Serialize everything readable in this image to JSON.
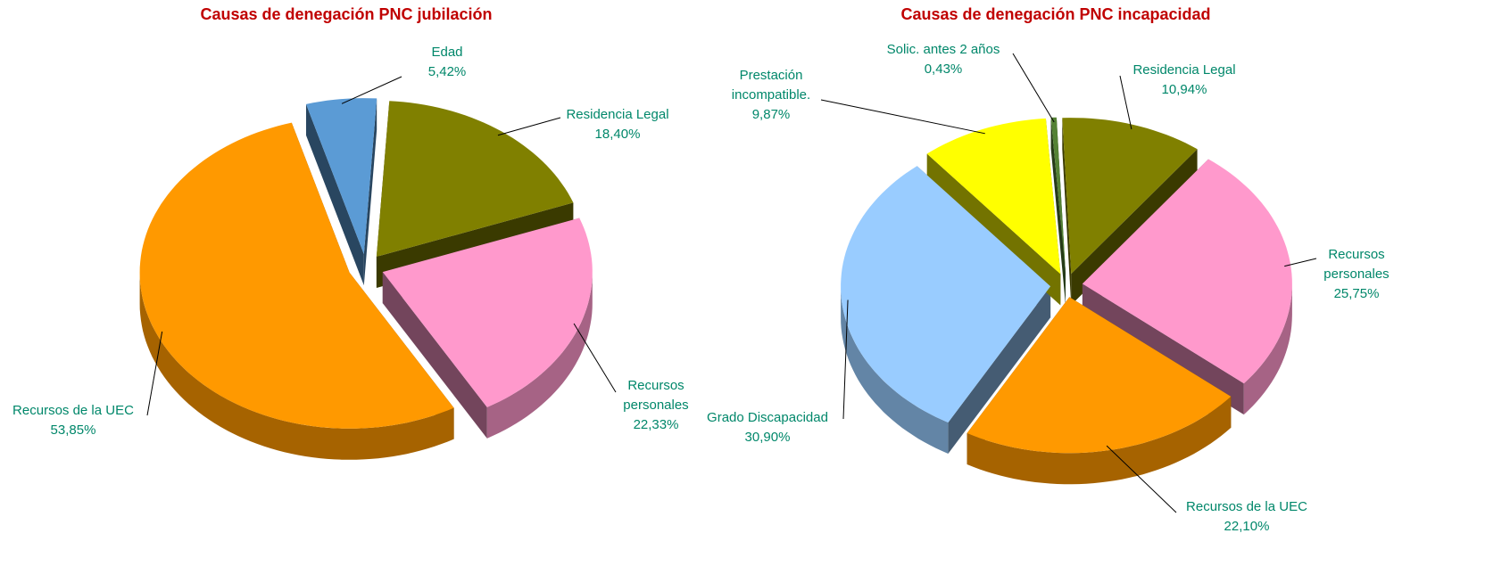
{
  "chart_data": [
    {
      "type": "pie",
      "title": "Causas de denegación PNC jubilación",
      "categories": [
        "Edad",
        "Residencia Legal",
        "Recursos personales",
        "Recursos de la UEC"
      ],
      "values": [
        5.42,
        18.4,
        22.33,
        53.85
      ],
      "value_labels": [
        "5,42%",
        "18,40%",
        "22,33%",
        "53,85%"
      ],
      "colors": [
        "#5b9bd5",
        "#808000",
        "#ff99cc",
        "#ff9900"
      ]
    },
    {
      "type": "pie",
      "title": "Causas de denegación PNC incapacidad",
      "categories": [
        "Solic. antes 2 años",
        "Residencia Legal",
        "Recursos personales",
        "Recursos de la UEC",
        "Grado Discapacidad",
        "Prestación incompatible."
      ],
      "values": [
        0.43,
        10.94,
        25.75,
        22.1,
        30.9,
        9.87
      ],
      "value_labels": [
        "0,43%",
        "10,94%",
        "25,75%",
        "22,10%",
        "30,90%",
        "9,87%"
      ],
      "colors": [
        "#548235",
        "#808000",
        "#ff99cc",
        "#ff9900",
        "#99ccff",
        "#ffff00"
      ]
    }
  ]
}
